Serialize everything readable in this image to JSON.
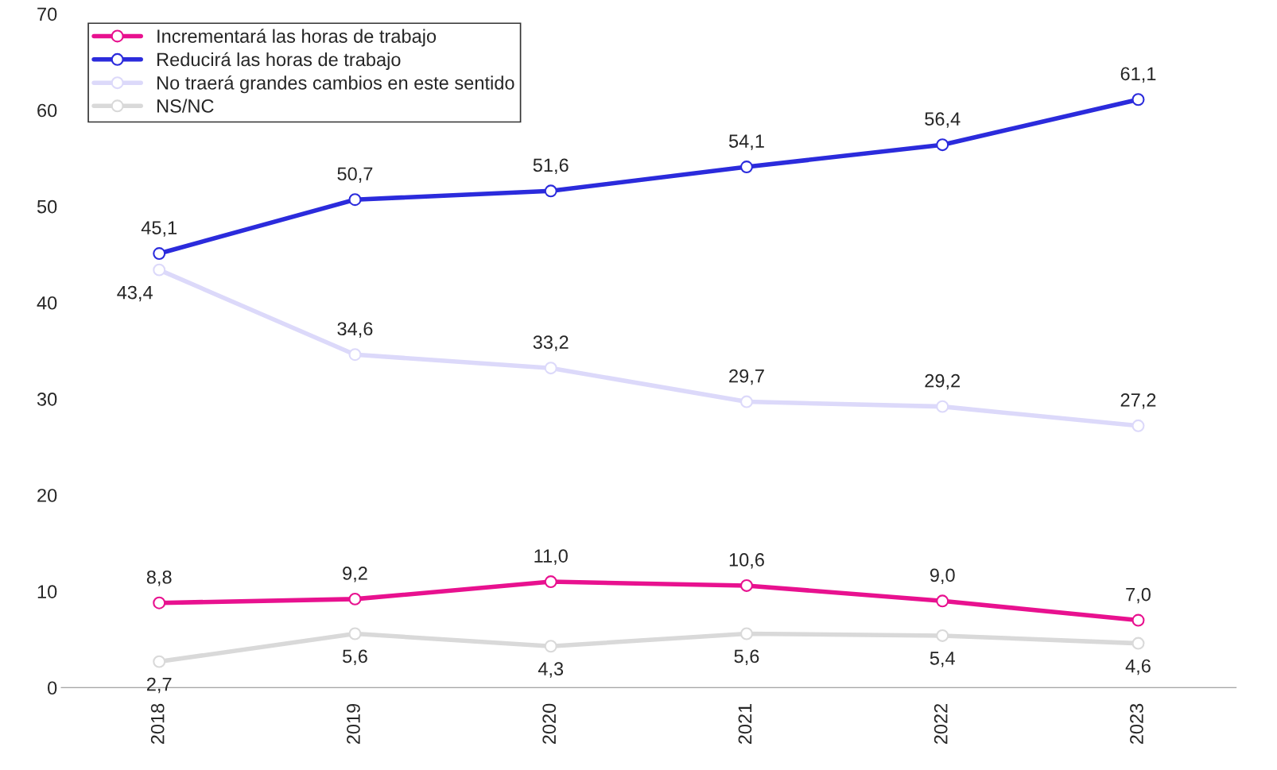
{
  "chart_data": {
    "type": "line",
    "categories": [
      "2018",
      "2019",
      "2020",
      "2021",
      "2022",
      "2023"
    ],
    "series": [
      {
        "name": "Incrementará las horas de trabajo",
        "color": "#e8118f",
        "values": [
          8.8,
          9.2,
          11.0,
          10.6,
          9.0,
          7.0
        ],
        "value_labels": [
          "8,8",
          "9,2",
          "11,0",
          "10,6",
          "9,0",
          "7,0"
        ]
      },
      {
        "name": "Reducirá las horas de trabajo",
        "color": "#2b2bdc",
        "values": [
          45.1,
          50.7,
          51.6,
          54.1,
          56.4,
          61.1
        ],
        "value_labels": [
          "45,1",
          "50,7",
          "51,6",
          "54,1",
          "56,4",
          "61,1"
        ]
      },
      {
        "name": "No traerá grandes cambios en este sentido",
        "color": "#dcd9fa",
        "values": [
          43.4,
          34.6,
          33.2,
          29.7,
          29.2,
          27.2
        ],
        "value_labels": [
          "43,4",
          "34,6",
          "33,2",
          "29,7",
          "29,2",
          "27,2"
        ]
      },
      {
        "name": "NS/NC",
        "color": "#d9d9d9",
        "values": [
          2.7,
          5.6,
          4.3,
          5.6,
          5.4,
          4.6
        ],
        "value_labels": [
          "2,7",
          "5,6",
          "4,3",
          "5,6",
          "5,4",
          "4,6"
        ]
      }
    ],
    "ylim": [
      0,
      70
    ],
    "yticks": [
      0,
      10,
      20,
      30,
      40,
      50,
      60,
      70
    ],
    "grid": false,
    "legend": "top left",
    "marker": "circle",
    "line_style": "solid"
  }
}
